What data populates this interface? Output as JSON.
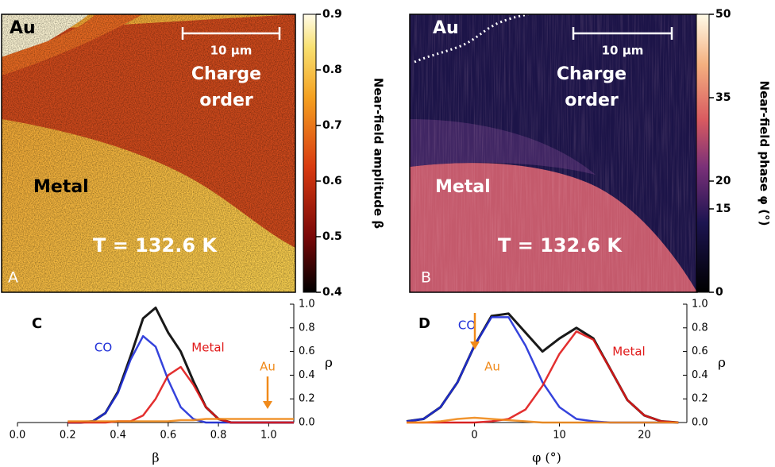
{
  "chart_data": [
    {
      "type": "image",
      "panel_label": "A",
      "labels": {
        "au": "Au",
        "scale_bar": "10 µm",
        "charge_order": [
          "Charge",
          "order"
        ],
        "metal": "Metal",
        "temperature": "T = 132.6 K"
      },
      "colorbar": {
        "label": "Near-field amplitude β",
        "clim": [
          0.4,
          0.9
        ],
        "ticks": [
          0.4,
          0.5,
          0.6,
          0.7,
          0.8,
          0.9
        ]
      }
    },
    {
      "type": "image",
      "panel_label": "B",
      "labels": {
        "au": "Au",
        "scale_bar": "10 µm",
        "charge_order": [
          "Charge",
          "order"
        ],
        "metal": "Metal",
        "temperature": "T = 132.6 K"
      },
      "colorbar": {
        "label": "Near-field phase φ (°)",
        "clim": [
          0,
          50
        ],
        "ticks": [
          0,
          15,
          20,
          35,
          50
        ]
      }
    },
    {
      "type": "line",
      "panel_label": "C",
      "xlabel": "β",
      "ylabel": "ρ",
      "x": [
        0.2,
        0.25,
        0.3,
        0.35,
        0.4,
        0.45,
        0.5,
        0.55,
        0.6,
        0.65,
        0.7,
        0.75,
        0.8,
        0.85,
        0.9,
        0.95,
        1.0,
        1.05,
        1.1
      ],
      "series": [
        {
          "color": "#000000",
          "values": [
            0,
            0,
            0.01,
            0.08,
            0.26,
            0.56,
            0.88,
            0.97,
            0.76,
            0.6,
            0.35,
            0.13,
            0.03,
            0,
            0,
            0,
            0,
            0,
            0
          ]
        },
        {
          "name": "CO",
          "color": "#1f2fd8",
          "values": [
            0,
            0,
            0.01,
            0.08,
            0.25,
            0.53,
            0.73,
            0.64,
            0.36,
            0.13,
            0.03,
            0,
            0,
            0,
            0,
            0,
            0,
            0,
            0
          ]
        },
        {
          "name": "Metal",
          "color": "#e01818",
          "values": [
            0,
            0,
            0,
            0,
            0.01,
            0.01,
            0.06,
            0.2,
            0.4,
            0.47,
            0.32,
            0.13,
            0.03,
            0,
            0,
            0,
            0,
            0,
            0
          ]
        },
        {
          "name": "Au",
          "color": "#f08a1a",
          "values": [
            0.01,
            0.01,
            0.01,
            0.01,
            0.01,
            0.01,
            0.01,
            0.01,
            0.01,
            0.02,
            0.02,
            0.03,
            0.03,
            0.03,
            0.03,
            0.03,
            0.03,
            0.03,
            0.03
          ]
        }
      ],
      "xlim": [
        0,
        1.1
      ],
      "ylim": [
        0,
        1.0
      ],
      "xticks": [
        {
          "value": 0,
          "label": "0.0"
        },
        0.2,
        0.4,
        0.6,
        0.8,
        {
          "value": 1,
          "label": "1.0"
        }
      ],
      "yticks": [
        {
          "value": 0,
          "label": "0.0"
        },
        0.2,
        0.4,
        0.6,
        0.8,
        {
          "value": 1,
          "label": "1.0"
        }
      ]
    },
    {
      "type": "line",
      "panel_label": "D",
      "xlabel": "φ (°)",
      "ylabel": "ρ",
      "x": [
        -8,
        -6,
        -4,
        -2,
        0,
        2,
        4,
        6,
        8,
        10,
        12,
        14,
        16,
        18,
        20,
        22,
        24
      ],
      "series": [
        {
          "color": "#000000",
          "values": [
            0.01,
            0.03,
            0.13,
            0.34,
            0.65,
            0.9,
            0.92,
            0.76,
            0.6,
            0.71,
            0.8,
            0.71,
            0.45,
            0.19,
            0.06,
            0.01,
            0
          ]
        },
        {
          "name": "CO",
          "color": "#1f2fd8",
          "values": [
            0.01,
            0.03,
            0.13,
            0.34,
            0.65,
            0.89,
            0.89,
            0.65,
            0.34,
            0.13,
            0.03,
            0.01,
            0,
            0,
            0,
            0,
            0
          ]
        },
        {
          "name": "Metal",
          "color": "#e01818",
          "values": [
            0,
            0,
            0,
            0,
            0,
            0.01,
            0.03,
            0.11,
            0.31,
            0.58,
            0.77,
            0.7,
            0.45,
            0.19,
            0.06,
            0.01,
            0
          ]
        },
        {
          "name": "Au",
          "color": "#f08a1a",
          "values": [
            0,
            0,
            0.01,
            0.03,
            0.04,
            0.03,
            0.02,
            0.01,
            0,
            0,
            0,
            0,
            0,
            0,
            0,
            0,
            0
          ]
        }
      ],
      "xlim": [
        -8,
        25
      ],
      "ylim": [
        0,
        1.0
      ],
      "xticks": [
        0,
        10,
        20
      ],
      "yticks": [
        {
          "value": 0,
          "label": "0.0"
        },
        0.2,
        0.4,
        0.6,
        0.8,
        {
          "value": 1,
          "label": "1.0"
        }
      ]
    }
  ]
}
